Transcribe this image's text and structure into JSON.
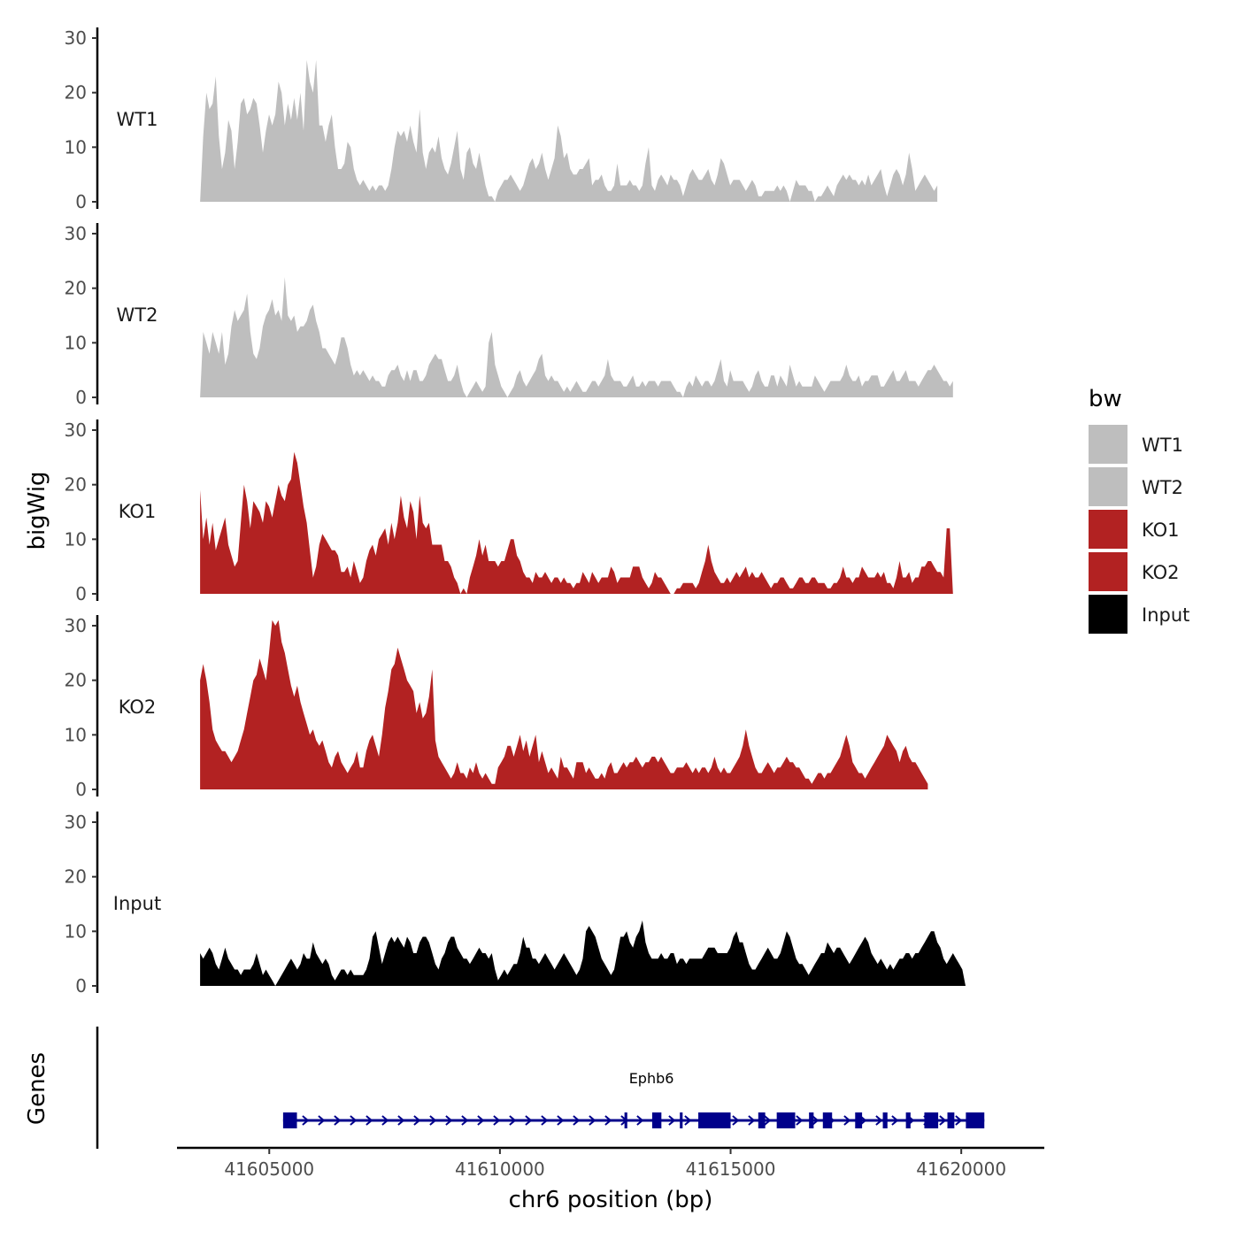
{
  "chart_data": {
    "type": "area",
    "y_axis_title": "bigWig",
    "x_axis_title": "chr6 position (bp)",
    "genes_panel_title": "Genes",
    "ylim": [
      0,
      30
    ],
    "y_ticks": [
      0,
      10,
      20,
      30
    ],
    "y_tick_labels": [
      "0",
      "10",
      "20",
      "30"
    ],
    "xlim": [
      41603000,
      41621800
    ],
    "x_ticks": [
      41605000,
      41610000,
      41615000,
      41620000
    ],
    "x_tick_labels": [
      "41605000",
      "41610000",
      "41615000",
      "41620000"
    ],
    "region": [
      41603500,
      41620500
    ],
    "legend": {
      "title": "bw",
      "entries": [
        {
          "label": "WT1",
          "color": "#bebebe"
        },
        {
          "label": "WT2",
          "color": "#bebebe"
        },
        {
          "label": "KO1",
          "color": "#b22222"
        },
        {
          "label": "KO2",
          "color": "#b22222"
        },
        {
          "label": "Input",
          "color": "#000000"
        }
      ]
    },
    "series": [
      {
        "name": "WT1",
        "color": "#bebebe",
        "values": [
          0,
          12,
          20,
          17,
          18,
          23,
          12,
          6,
          9,
          15,
          13,
          6,
          11,
          18,
          19,
          16,
          17,
          19,
          18,
          14,
          9,
          13,
          16,
          14,
          16,
          22,
          20,
          14,
          18,
          15,
          19,
          15,
          20,
          13,
          26,
          22,
          20,
          26,
          14,
          14,
          11,
          14,
          16,
          10,
          6,
          6,
          7,
          11,
          10,
          6,
          4,
          3,
          4,
          3,
          2,
          3,
          2,
          3,
          3,
          2,
          3,
          6,
          10,
          13,
          12,
          13,
          11,
          14,
          11,
          9,
          17,
          9,
          6,
          9,
          10,
          9,
          12,
          8,
          6,
          5,
          7,
          10,
          13,
          6,
          4,
          9,
          10,
          7,
          6,
          9,
          6,
          3,
          1,
          1,
          0,
          2,
          3,
          4,
          4,
          5,
          4,
          3,
          2,
          3,
          5,
          7,
          8,
          6,
          7,
          9,
          6,
          4,
          6,
          8,
          14,
          12,
          8,
          9,
          6,
          5,
          5,
          6,
          6,
          7,
          8,
          3,
          4,
          4,
          5,
          3,
          2,
          2,
          3,
          7,
          3,
          3,
          3,
          4,
          3,
          3,
          2,
          3,
          7,
          10,
          3,
          2,
          4,
          5,
          4,
          3,
          5,
          4,
          4,
          3,
          1,
          3,
          5,
          6,
          5,
          4,
          4,
          5,
          6,
          4,
          3,
          5,
          8,
          7,
          5,
          3,
          4,
          4,
          4,
          3,
          2,
          3,
          4,
          3,
          1,
          1,
          2,
          2,
          2,
          2,
          3,
          2,
          3,
          2,
          0,
          2,
          4,
          3,
          3,
          3,
          2,
          2,
          0,
          1,
          1,
          2,
          3,
          2,
          1,
          3,
          4,
          5,
          4,
          5,
          4,
          4,
          3,
          4,
          3,
          5,
          3,
          4,
          5,
          6,
          3,
          1,
          3,
          5,
          6,
          5,
          3,
          5,
          9,
          6,
          2,
          3,
          4,
          5,
          4,
          3,
          2,
          3
        ],
        "x_start": 41603500,
        "x_step": 68
      },
      {
        "name": "WT2",
        "color": "#bebebe",
        "values": [
          0,
          12,
          10,
          8,
          12,
          10,
          8,
          12,
          6,
          8,
          13,
          16,
          14,
          15,
          16,
          19,
          12,
          8,
          7,
          9,
          13,
          15,
          16,
          18,
          15,
          16,
          14,
          22,
          15,
          14,
          15,
          12,
          13,
          13,
          14,
          16,
          17,
          14,
          12,
          9,
          9,
          8,
          7,
          6,
          8,
          11,
          11,
          9,
          6,
          4,
          5,
          4,
          5,
          4,
          3,
          4,
          3,
          3,
          2,
          2,
          4,
          5,
          5,
          6,
          4,
          3,
          5,
          3,
          5,
          5,
          3,
          3,
          4,
          6,
          7,
          8,
          7,
          7,
          5,
          3,
          3,
          4,
          6,
          3,
          1,
          0,
          1,
          2,
          3,
          2,
          1,
          2,
          10,
          12,
          6,
          4,
          2,
          1,
          0,
          1,
          2,
          4,
          5,
          3,
          2,
          3,
          4,
          5,
          7,
          8,
          4,
          3,
          4,
          3,
          3,
          2,
          1,
          2,
          1,
          2,
          3,
          2,
          1,
          1,
          2,
          3,
          3,
          2,
          3,
          4,
          7,
          4,
          3,
          3,
          3,
          2,
          2,
          3,
          4,
          2,
          2,
          3,
          2,
          3,
          3,
          3,
          2,
          3,
          3,
          3,
          3,
          2,
          1,
          1,
          0,
          2,
          3,
          2,
          4,
          3,
          2,
          3,
          3,
          2,
          3,
          5,
          7,
          3,
          2,
          5,
          3,
          3,
          3,
          3,
          2,
          1,
          2,
          4,
          5,
          3,
          2,
          2,
          4,
          4,
          2,
          4,
          3,
          2,
          6,
          4,
          2,
          3,
          2,
          2,
          2,
          2,
          4,
          3,
          2,
          1,
          2,
          3,
          3,
          3,
          3,
          4,
          6,
          4,
          3,
          3,
          4,
          2,
          3,
          3,
          4,
          4,
          4,
          2,
          2,
          3,
          4,
          5,
          3,
          3,
          4,
          5,
          3,
          3,
          3,
          2,
          3,
          4,
          5,
          5,
          6,
          5,
          4,
          3,
          3,
          2,
          3
        ],
        "x_start": 41603500,
        "x_step": 68
      },
      {
        "name": "KO1",
        "color": "#b22222",
        "values": [
          19,
          10,
          14,
          9,
          13,
          8,
          10,
          12,
          14,
          9,
          7,
          5,
          6,
          13,
          20,
          17,
          12,
          17,
          16,
          15,
          13,
          17,
          16,
          14,
          17,
          20,
          18,
          17,
          20,
          21,
          26,
          24,
          20,
          16,
          13,
          8,
          3,
          5,
          9,
          11,
          10,
          9,
          8,
          8,
          7,
          4,
          4,
          5,
          3,
          6,
          4,
          2,
          3,
          6,
          8,
          9,
          7,
          10,
          11,
          12,
          9,
          13,
          10,
          13,
          18,
          14,
          12,
          17,
          15,
          10,
          18,
          13,
          12,
          13,
          9,
          9,
          9,
          9,
          6,
          6,
          5,
          3,
          2,
          0,
          1,
          0,
          3,
          5,
          7,
          10,
          7,
          9,
          6,
          6,
          6,
          5,
          6,
          6,
          8,
          10,
          10,
          7,
          6,
          4,
          3,
          3,
          2,
          4,
          3,
          3,
          4,
          3,
          2,
          3,
          3,
          2,
          3,
          2,
          2,
          1,
          2,
          2,
          4,
          3,
          2,
          4,
          3,
          2,
          3,
          3,
          3,
          5,
          4,
          2,
          3,
          3,
          3,
          3,
          5,
          5,
          5,
          3,
          2,
          1,
          2,
          4,
          3,
          3,
          2,
          1,
          0,
          0,
          1,
          1,
          2,
          2,
          2,
          2,
          1,
          2,
          4,
          6,
          9,
          6,
          4,
          3,
          2,
          2,
          3,
          2,
          3,
          4,
          3,
          4,
          5,
          3,
          4,
          3,
          3,
          4,
          3,
          2,
          1,
          2,
          2,
          3,
          3,
          2,
          1,
          1,
          2,
          3,
          3,
          2,
          2,
          3,
          3,
          2,
          2,
          2,
          1,
          1,
          2,
          2,
          3,
          5,
          3,
          3,
          2,
          3,
          3,
          5,
          4,
          3,
          3,
          3,
          4,
          3,
          4,
          2,
          2,
          1,
          3,
          6,
          3,
          3,
          4,
          2,
          3,
          3,
          5,
          5,
          6,
          6,
          5,
          4,
          4,
          3,
          12,
          12,
          0
        ],
        "x_start": 41603500,
        "x_step": 68
      },
      {
        "name": "KO2",
        "color": "#b22222",
        "values": [
          20,
          23,
          20,
          16,
          11,
          9,
          8,
          7,
          7,
          6,
          5,
          6,
          7,
          9,
          11,
          14,
          17,
          20,
          21,
          24,
          22,
          20,
          25,
          31,
          30,
          31,
          27,
          25,
          22,
          19,
          17,
          19,
          16,
          14,
          12,
          10,
          11,
          9,
          8,
          9,
          7,
          5,
          4,
          6,
          7,
          5,
          4,
          3,
          4,
          5,
          7,
          4,
          4,
          7,
          9,
          10,
          8,
          6,
          10,
          15,
          18,
          22,
          23,
          26,
          24,
          22,
          20,
          19,
          18,
          14,
          16,
          13,
          14,
          17,
          22,
          9,
          6,
          5,
          4,
          3,
          2,
          3,
          5,
          3,
          3,
          2,
          4,
          3,
          5,
          3,
          2,
          3,
          2,
          1,
          1,
          4,
          5,
          6,
          8,
          8,
          6,
          8,
          10,
          7,
          9,
          6,
          8,
          10,
          5,
          7,
          5,
          3,
          4,
          3,
          2,
          6,
          4,
          4,
          3,
          2,
          5,
          5,
          5,
          3,
          4,
          3,
          2,
          2,
          3,
          2,
          4,
          5,
          3,
          3,
          4,
          5,
          4,
          5,
          5,
          6,
          5,
          4,
          5,
          5,
          6,
          6,
          5,
          6,
          5,
          4,
          3,
          3,
          4,
          4,
          4,
          5,
          4,
          3,
          4,
          3,
          4,
          4,
          3,
          4,
          6,
          4,
          3,
          4,
          3,
          3,
          4,
          5,
          6,
          8,
          11,
          8,
          6,
          4,
          3,
          3,
          4,
          5,
          4,
          3,
          4,
          4,
          5,
          6,
          5,
          5,
          4,
          4,
          3,
          2,
          2,
          1,
          2,
          3,
          3,
          2,
          3,
          3,
          4,
          5,
          6,
          8,
          10,
          8,
          5,
          4,
          3,
          3,
          2,
          3,
          4,
          5,
          6,
          7,
          8,
          10,
          9,
          8,
          7,
          5,
          7,
          8,
          6,
          5,
          5,
          4,
          3,
          2,
          1
        ],
        "x_start": 41603500,
        "x_step": 68
      },
      {
        "name": "Input",
        "color": "#000000",
        "values": [
          6,
          5,
          6,
          7,
          6,
          4,
          3,
          5,
          7,
          5,
          4,
          3,
          3,
          2,
          3,
          3,
          3,
          4,
          6,
          4,
          2,
          3,
          2,
          1,
          0,
          1,
          2,
          3,
          4,
          5,
          4,
          3,
          4,
          6,
          5,
          5,
          8,
          6,
          5,
          4,
          5,
          4,
          2,
          1,
          2,
          3,
          3,
          2,
          3,
          2,
          2,
          2,
          2,
          3,
          5,
          9,
          10,
          7,
          4,
          6,
          8,
          9,
          8,
          9,
          8,
          7,
          9,
          8,
          6,
          6,
          8,
          9,
          9,
          8,
          6,
          4,
          3,
          5,
          6,
          8,
          9,
          9,
          7,
          6,
          5,
          5,
          4,
          5,
          6,
          7,
          6,
          6,
          5,
          6,
          3,
          1,
          2,
          3,
          2,
          3,
          4,
          4,
          6,
          9,
          7,
          7,
          5,
          5,
          4,
          5,
          6,
          5,
          4,
          3,
          4,
          5,
          6,
          5,
          4,
          3,
          2,
          3,
          5,
          10,
          11,
          10,
          9,
          7,
          5,
          4,
          3,
          2,
          3,
          6,
          9,
          9,
          10,
          8,
          7,
          9,
          10,
          12,
          8,
          6,
          5,
          5,
          5,
          6,
          5,
          5,
          6,
          6,
          4,
          5,
          5,
          4,
          5,
          5,
          5,
          5,
          5,
          6,
          7,
          7,
          7,
          6,
          6,
          6,
          6,
          7,
          9,
          10,
          8,
          8,
          6,
          4,
          3,
          3,
          4,
          5,
          6,
          7,
          6,
          5,
          5,
          6,
          8,
          10,
          9,
          7,
          5,
          4,
          4,
          3,
          2,
          3,
          4,
          5,
          6,
          6,
          8,
          7,
          6,
          7,
          7,
          6,
          5,
          4,
          5,
          6,
          7,
          8,
          9,
          8,
          6,
          5,
          4,
          5,
          4,
          3,
          4,
          3,
          4,
          5,
          5,
          6,
          6,
          5,
          6,
          6,
          7,
          8,
          9,
          10,
          10,
          8,
          7,
          5,
          4,
          5,
          6,
          5,
          4,
          3,
          0
        ],
        "x_start": 41603500,
        "x_step": 68
      }
    ],
    "genes": [
      {
        "name": "Ephb6",
        "strand": "+",
        "start": 41605300,
        "end": 41620500,
        "color": "#00008b",
        "exons": [
          [
            41605300,
            41605600
          ],
          [
            41612700,
            41612760
          ],
          [
            41613300,
            41613500
          ],
          [
            41613900,
            41613960
          ],
          [
            41614300,
            41615000
          ],
          [
            41615600,
            41615750
          ],
          [
            41616000,
            41616400
          ],
          [
            41616700,
            41616800
          ],
          [
            41617000,
            41617200
          ],
          [
            41617700,
            41617850
          ],
          [
            41618300,
            41618400
          ],
          [
            41618800,
            41618900
          ],
          [
            41619200,
            41619500
          ],
          [
            41619700,
            41619850
          ],
          [
            41620100,
            41620500
          ]
        ]
      }
    ]
  }
}
